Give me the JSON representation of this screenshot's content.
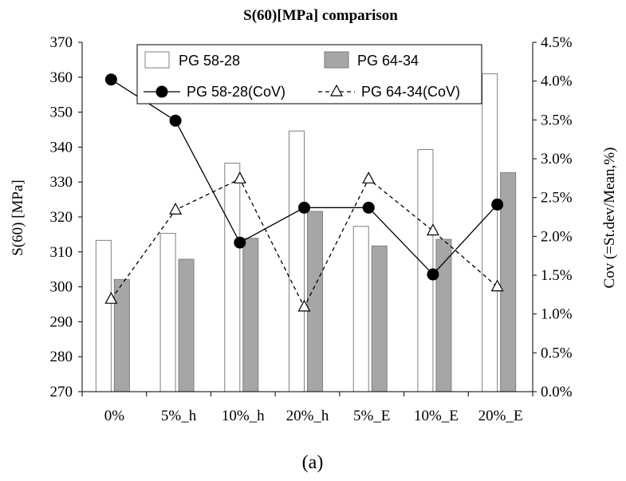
{
  "chart_data": {
    "type": "bar",
    "title": "S(60)[MPa] comparison",
    "ylabel": "S(60) [MPa]",
    "y2label": "Cov (=St.dev/Mean,%)",
    "categories": [
      "0%",
      "5%_h",
      "10%_h",
      "20%_h",
      "5%_E",
      "10%_E",
      "20%_E"
    ],
    "ylim": [
      270,
      370
    ],
    "yticks": [
      270,
      280,
      290,
      300,
      310,
      320,
      330,
      340,
      350,
      360,
      370
    ],
    "y2lim": [
      0.0,
      4.5
    ],
    "y2ticks": [
      "0.0%",
      "0.5%",
      "1.0%",
      "1.5%",
      "2.0%",
      "2.5%",
      "3.0%",
      "3.5%",
      "4.0%",
      "4.5%"
    ],
    "bar_series": [
      {
        "name": "PG 58-28",
        "color": "#ffffff",
        "values": [
          313.3,
          315.3,
          335.4,
          344.6,
          317.3,
          339.3,
          361.0
        ]
      },
      {
        "name": "PG 64-34",
        "color": "#a6a6a6",
        "values": [
          302.1,
          307.9,
          313.9,
          321.6,
          311.7,
          313.6,
          332.7
        ]
      }
    ],
    "line_series": [
      {
        "name": "PG 58-28(CoV)",
        "style": "solid",
        "marker": "filled-circle",
        "values": [
          4.02,
          3.49,
          1.92,
          2.37,
          2.37,
          1.51,
          2.41
        ]
      },
      {
        "name": "PG 64-34(CoV)",
        "style": "dashed",
        "marker": "open-triangle",
        "values": [
          1.19,
          2.34,
          2.74,
          1.09,
          2.74,
          2.07,
          1.35
        ]
      }
    ],
    "legend_position": "top-center",
    "grid": false
  },
  "caption": "(a)"
}
